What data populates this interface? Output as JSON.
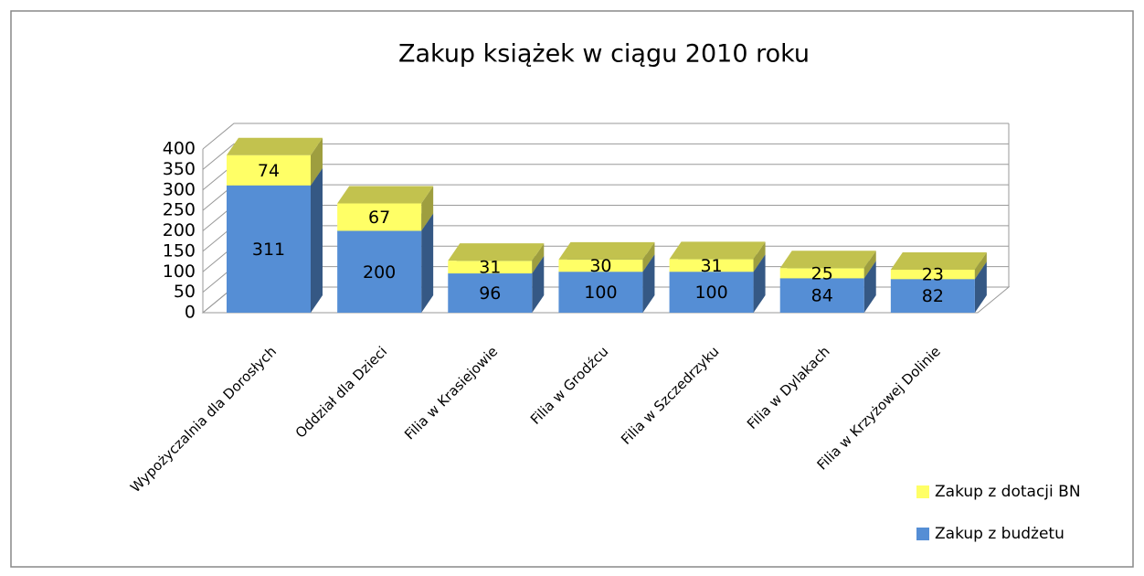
{
  "chart_data": {
    "type": "bar3d_stacked",
    "title": "Zakup książek w ciągu 2010 roku",
    "categories": [
      "Wypożyczalnia dla Dorosłych",
      "Oddział dla Dzieci",
      "Filia w Krasiejowie",
      "Filia w Grodźcu",
      "Filia w Szczedrzyku",
      "Filia w Dylakach",
      "Filia w Krzyżowej Dolinie"
    ],
    "series": [
      {
        "name": "Zakup z budżetu",
        "color": "#558ed5",
        "values": [
          311,
          200,
          96,
          100,
          100,
          84,
          82
        ]
      },
      {
        "name": "Zakup z dotacji BN",
        "color": "#ffff66",
        "values": [
          74,
          67,
          31,
          30,
          31,
          25,
          23
        ]
      }
    ],
    "ylim": [
      0,
      400
    ],
    "yticks": [
      0,
      50,
      100,
      150,
      200,
      250,
      300,
      350,
      400
    ],
    "grid": true,
    "legend": "bottom-right"
  }
}
